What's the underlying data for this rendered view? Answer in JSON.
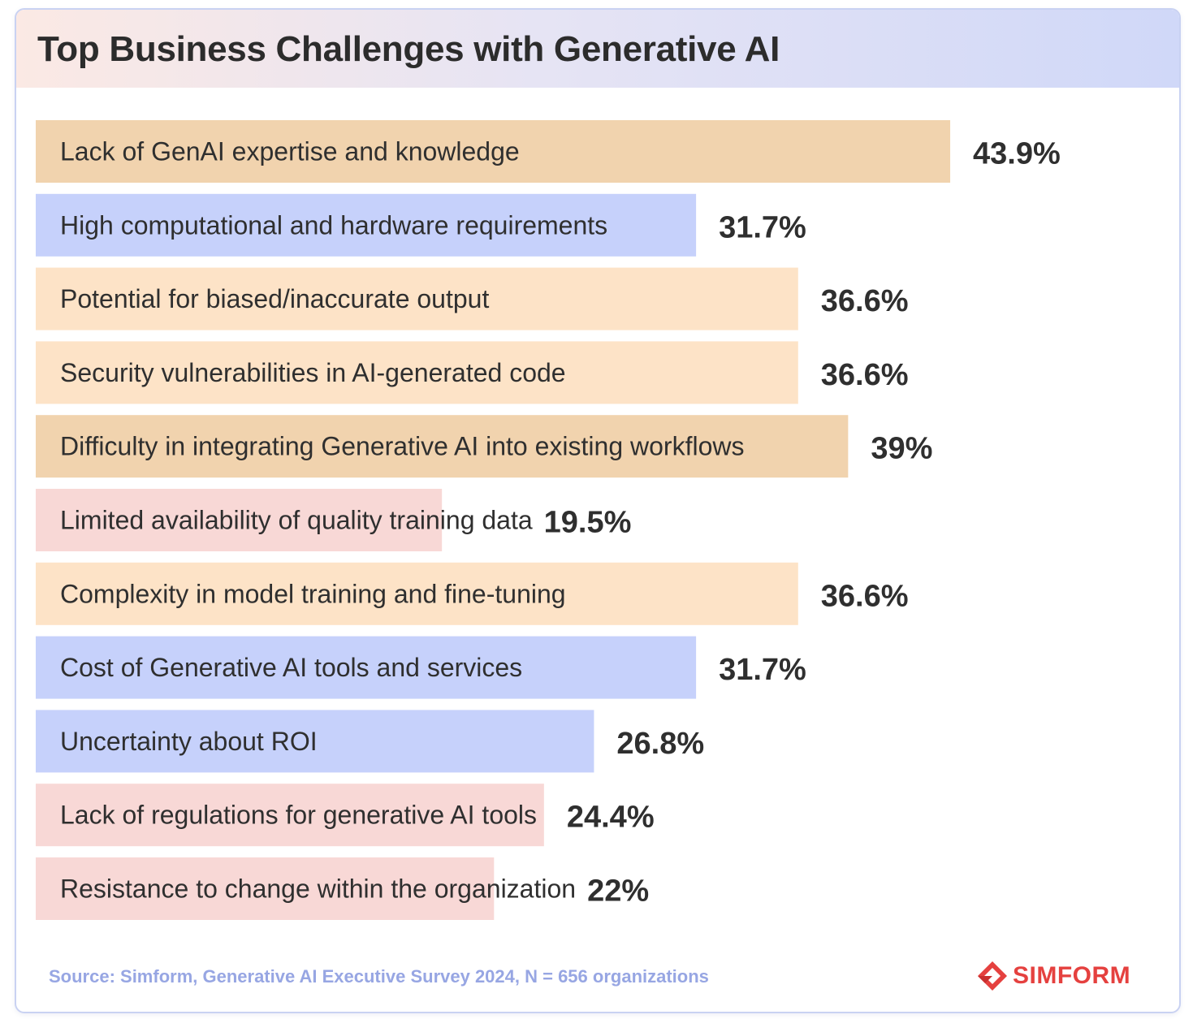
{
  "title": "Top Business Challenges with Generative AI",
  "source": "Source: Simform, Generative AI Executive Survey 2024, N = 656 organizations",
  "logo": {
    "text": "SIMFORM",
    "color": "#e5413f"
  },
  "colors": {
    "orange_dark": "#f1d3ae",
    "orange_light": "#fde3c7",
    "blue": "#c6d1fb",
    "pink": "#f8d8d6",
    "label": "#2f2f2f",
    "value": "#2f2f2f"
  },
  "chart_data": {
    "type": "bar",
    "orientation": "horizontal",
    "categories": [
      "Lack of GenAI expertise and knowledge",
      "High computational and hardware requirements",
      "Potential for biased/inaccurate output",
      "Security vulnerabilities in AI-generated code",
      "Difficulty in integrating Generative AI into existing workflows",
      "Limited availability of quality training data",
      "Complexity in model training and fine-tuning",
      "Cost of Generative AI tools and services",
      "Uncertainty about ROI",
      "Lack of regulations for generative AI tools",
      "Resistance to change within the organization"
    ],
    "values": [
      43.9,
      31.7,
      36.6,
      36.6,
      39,
      19.5,
      36.6,
      31.7,
      26.8,
      24.4,
      22
    ],
    "value_labels": [
      "43.9%",
      "31.7%",
      "36.6%",
      "36.6%",
      "39%",
      "19.5%",
      "36.6%",
      "31.7%",
      "26.8%",
      "24.4%",
      "22%"
    ],
    "bar_colors": [
      "orange_dark",
      "blue",
      "orange_light",
      "orange_light",
      "orange_dark",
      "pink",
      "orange_light",
      "blue",
      "blue",
      "pink",
      "pink"
    ],
    "unit": "%",
    "grid": false,
    "legend": "none"
  }
}
